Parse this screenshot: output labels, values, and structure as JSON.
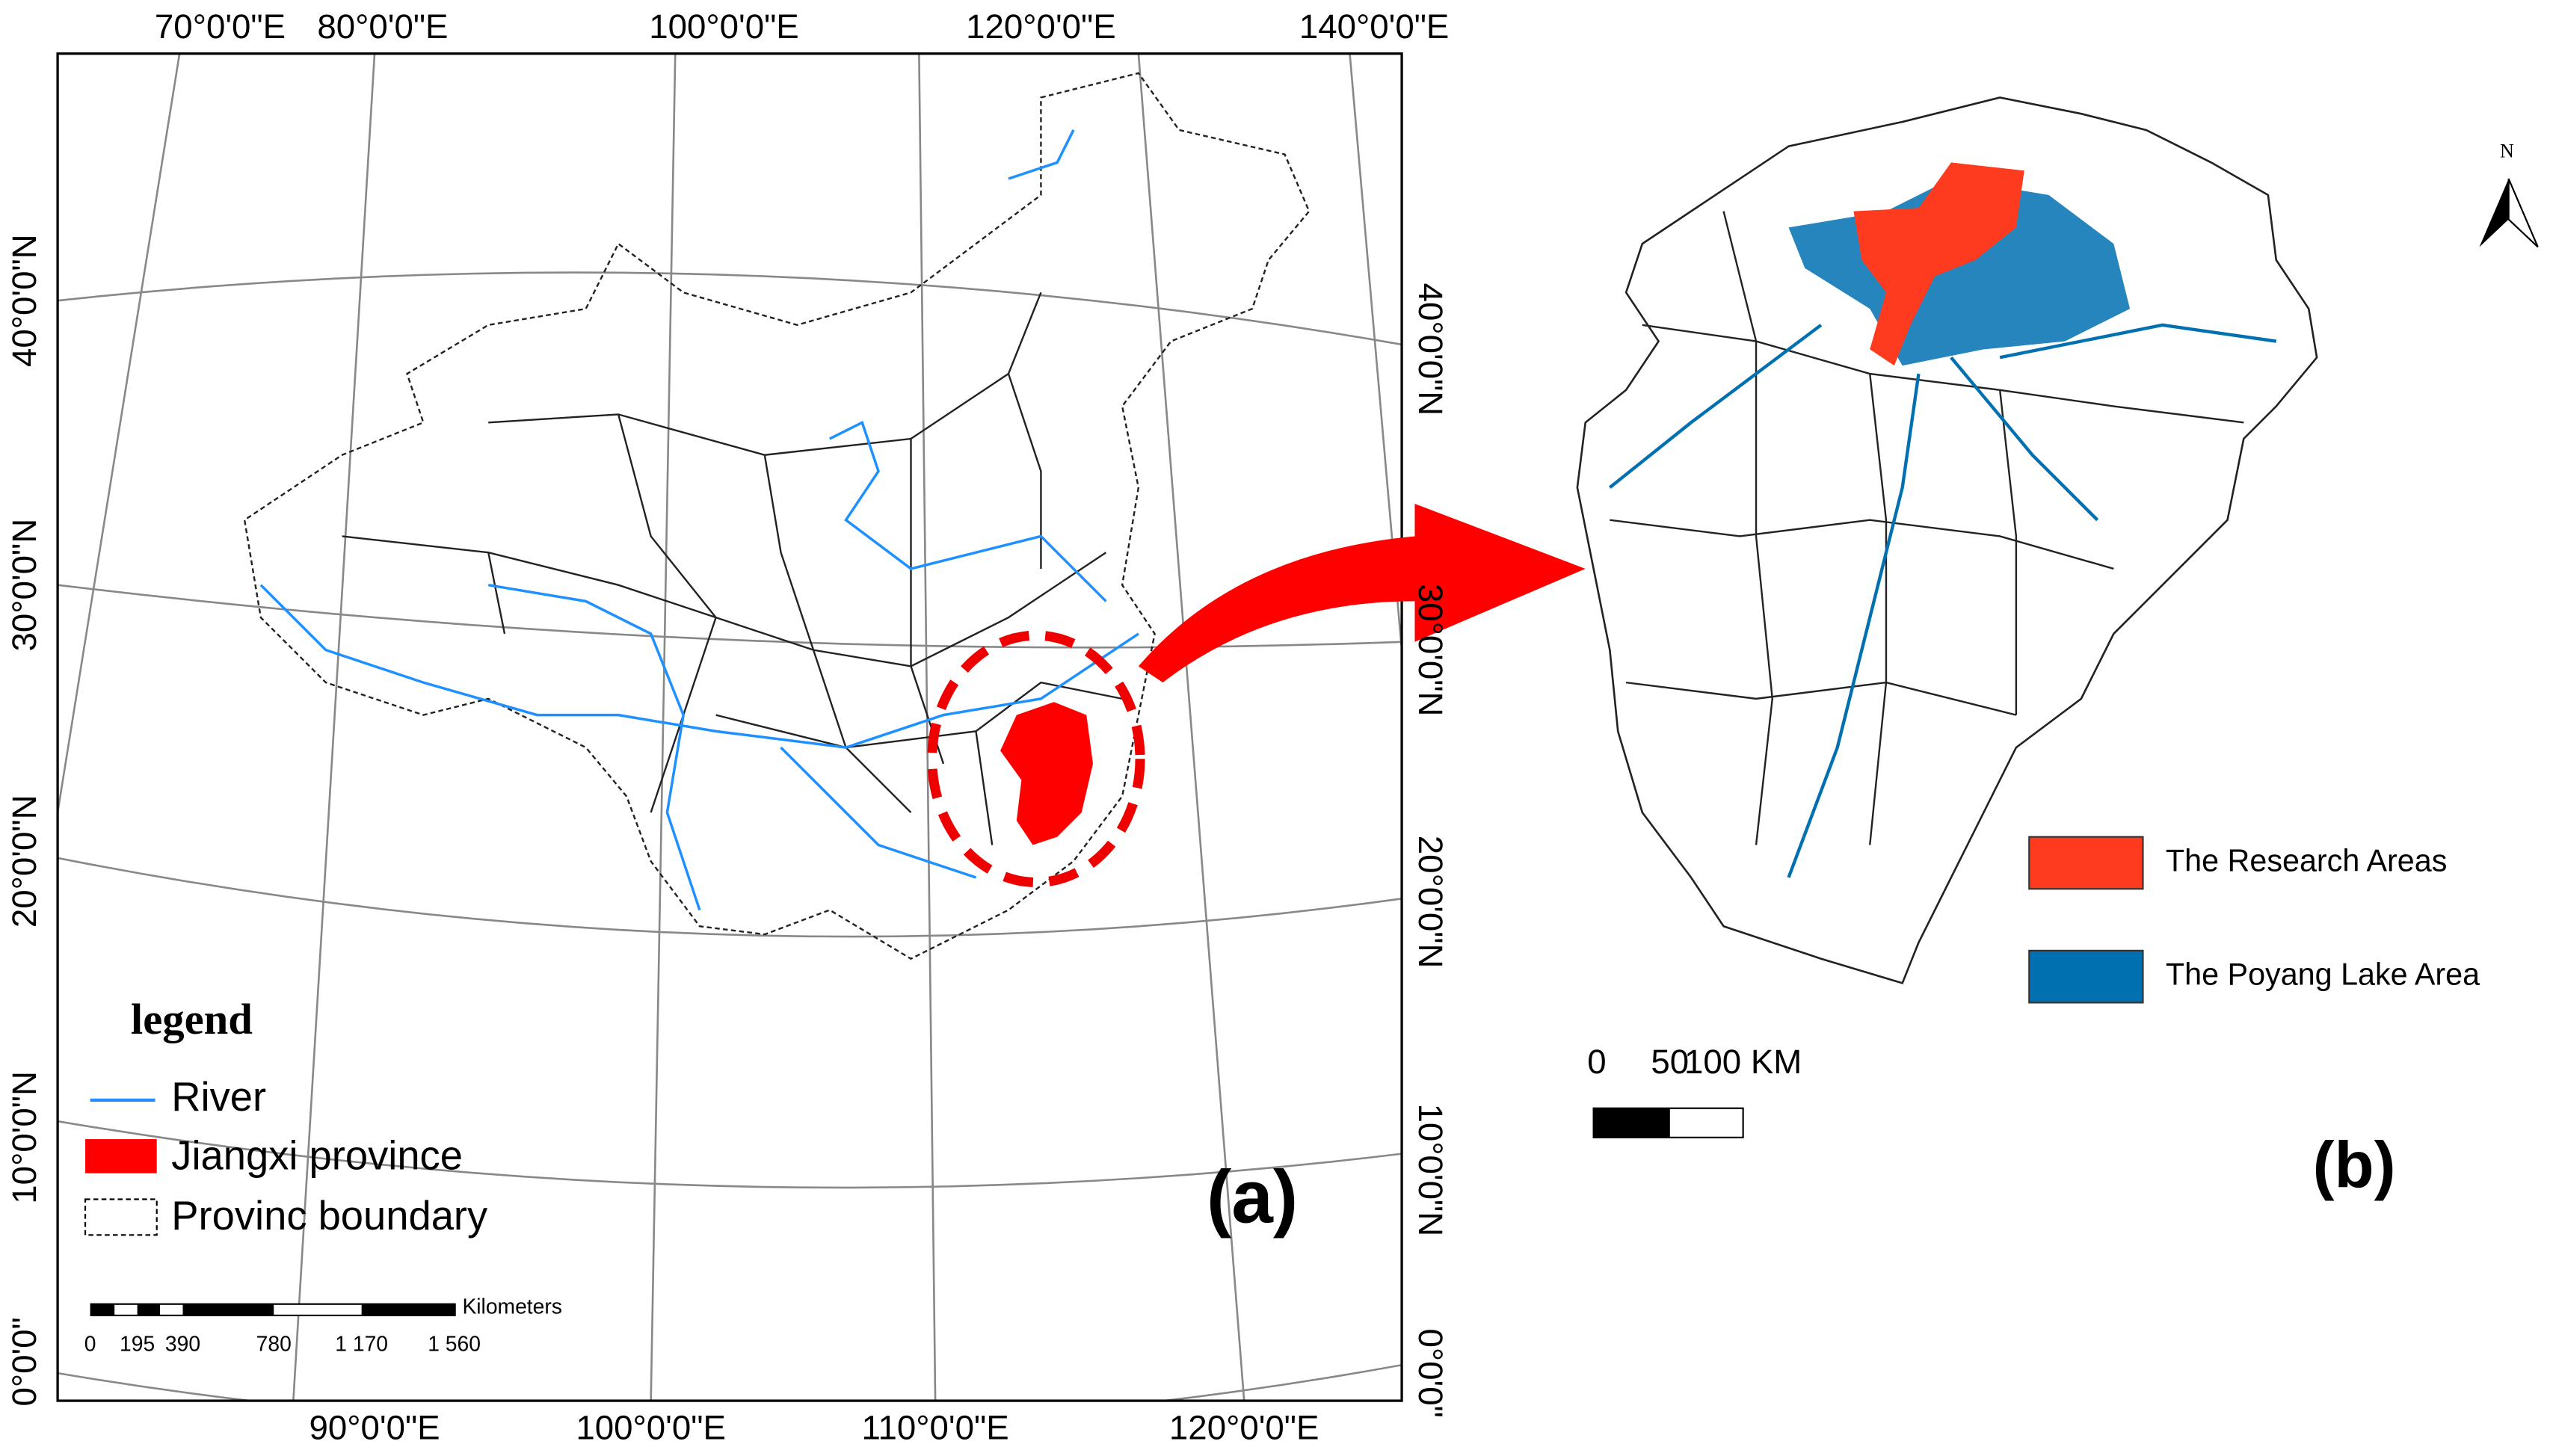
{
  "map_a": {
    "lon_labels_top": [
      "70°0'0\"E",
      "80°0'0\"E",
      "100°0'0\"E",
      "120°0'0\"E",
      "140°0'0\"E"
    ],
    "lon_labels_bottom": [
      "90°0'0\"E",
      "100°0'0\"E",
      "110°0'0\"E",
      "120°0'0\"E"
    ],
    "lat_labels_left": [
      "40°0'0\"N",
      "30°0'0\"N",
      "20°0'0\"N",
      "10°0'0\"N",
      "0°0'0\""
    ],
    "lat_labels_right": [
      "40°0'0\"N",
      "30°0'0\"N",
      "20°0'0\"N",
      "10°0'0\"N",
      "0°0'0\""
    ],
    "legend": {
      "title": "legend",
      "items": [
        "River",
        "Jiangxi province",
        "Provinc boundary"
      ]
    },
    "scale": {
      "unit": "Kilometers",
      "labels": [
        "0",
        "195",
        "390",
        "780",
        "1 170",
        "1 560"
      ]
    },
    "panel_label": "(a)"
  },
  "map_b": {
    "north": "N",
    "legend": {
      "items": [
        "The Research Areas",
        "The Poyang Lake Area"
      ]
    },
    "scale": {
      "labels": [
        "0",
        "50",
        "100 KM"
      ]
    },
    "panel_label": "(b)"
  }
}
